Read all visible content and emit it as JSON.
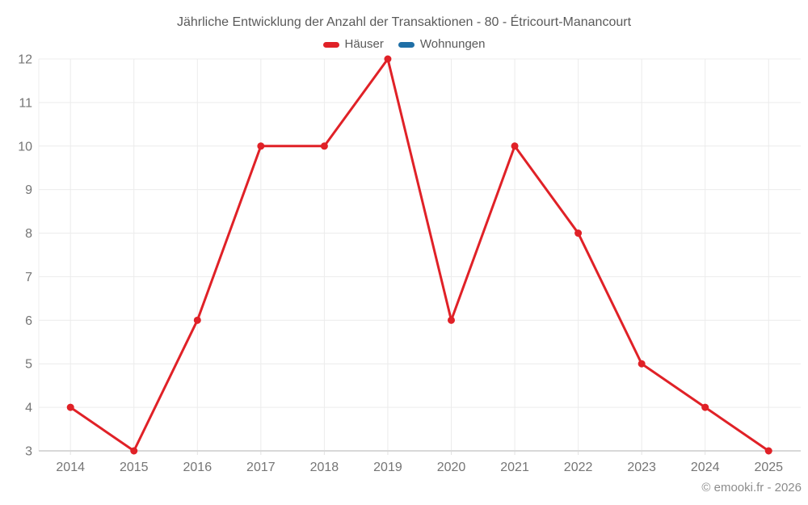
{
  "chart_data": {
    "type": "line",
    "title": "Jährliche Entwicklung der Anzahl der Transaktionen - 80 - Étricourt-Manancourt",
    "categories": [
      "2014",
      "2015",
      "2016",
      "2017",
      "2018",
      "2019",
      "2020",
      "2021",
      "2022",
      "2023",
      "2024",
      "2025"
    ],
    "series": [
      {
        "name": "Häuser",
        "color": "#e02127",
        "values": [
          4,
          3,
          6,
          10,
          10,
          12,
          6,
          10,
          8,
          5,
          4,
          3
        ]
      },
      {
        "name": "Wohnungen",
        "color": "#1f6fa6",
        "values": []
      }
    ],
    "legend": [
      {
        "label": "Häuser",
        "color": "#e02127"
      },
      {
        "label": "Wohnungen",
        "color": "#1f6fa6"
      }
    ],
    "ylim": [
      3,
      12
    ],
    "yticks": [
      3,
      4,
      5,
      6,
      7,
      8,
      9,
      10,
      11,
      12
    ],
    "xlabel": "",
    "ylabel": "",
    "grid": true,
    "legend_position": "top"
  },
  "footer": {
    "copyright": "© emooki.fr - 2026"
  }
}
